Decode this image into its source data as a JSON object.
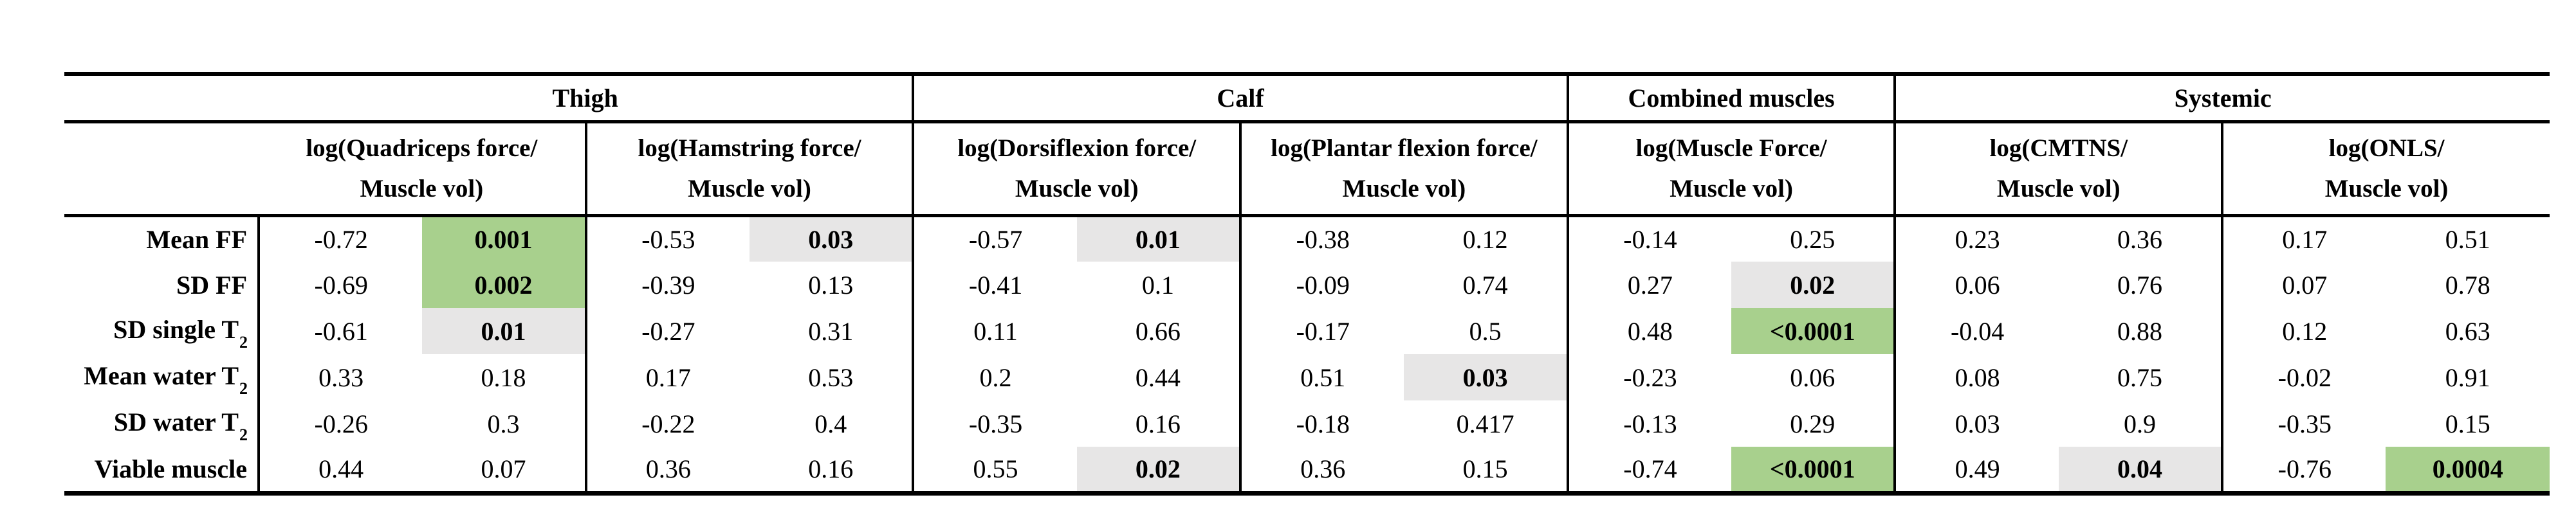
{
  "table": {
    "groups": [
      {
        "label": "Thigh"
      },
      {
        "label": "Calf"
      },
      {
        "label": "Combined muscles"
      },
      {
        "label": "Systemic"
      }
    ],
    "measures": [
      {
        "line1": "log(Quadriceps force/",
        "line2": "Muscle vol)"
      },
      {
        "line1": "log(Hamstring force/",
        "line2": "Muscle vol)"
      },
      {
        "line1": "log(Dorsiflexion force/",
        "line2": "Muscle vol)"
      },
      {
        "line1": "log(Plantar flexion force/",
        "line2": "Muscle vol)"
      },
      {
        "line1": "log(Muscle Force/",
        "line2": "Muscle vol)"
      },
      {
        "line1": "log(CMTNS/",
        "line2": "Muscle vol)"
      },
      {
        "line1": "log(ONLS/",
        "line2": "Muscle vol)"
      }
    ],
    "rows": [
      {
        "label": "Mean FF",
        "sub": "",
        "cells": [
          {
            "r": "-0.72",
            "p": "0.001",
            "hl": "green"
          },
          {
            "r": "-0.53",
            "p": "0.03",
            "hl": "gray"
          },
          {
            "r": "-0.57",
            "p": "0.01",
            "hl": "gray"
          },
          {
            "r": "-0.38",
            "p": "0.12",
            "hl": null
          },
          {
            "r": "-0.14",
            "p": "0.25",
            "hl": null
          },
          {
            "r": "0.23",
            "p": "0.36",
            "hl": null
          },
          {
            "r": "0.17",
            "p": "0.51",
            "hl": null
          }
        ]
      },
      {
        "label": "SD FF",
        "sub": "",
        "cells": [
          {
            "r": "-0.69",
            "p": "0.002",
            "hl": "green"
          },
          {
            "r": "-0.39",
            "p": "0.13",
            "hl": null
          },
          {
            "r": "-0.41",
            "p": "0.1",
            "hl": null
          },
          {
            "r": "-0.09",
            "p": "0.74",
            "hl": null
          },
          {
            "r": "0.27",
            "p": "0.02",
            "hl": "gray"
          },
          {
            "r": "0.06",
            "p": "0.76",
            "hl": null
          },
          {
            "r": "0.07",
            "p": "0.78",
            "hl": null
          }
        ]
      },
      {
        "label": "SD single T",
        "sub": "2",
        "cells": [
          {
            "r": "-0.61",
            "p": "0.01",
            "hl": "gray"
          },
          {
            "r": "-0.27",
            "p": "0.31",
            "hl": null
          },
          {
            "r": "0.11",
            "p": "0.66",
            "hl": null
          },
          {
            "r": "-0.17",
            "p": "0.5",
            "hl": null
          },
          {
            "r": "0.48",
            "p": "<0.0001",
            "hl": "green"
          },
          {
            "r": "-0.04",
            "p": "0.88",
            "hl": null
          },
          {
            "r": "0.12",
            "p": "0.63",
            "hl": null
          }
        ]
      },
      {
        "label": "Mean water T",
        "sub": "2",
        "cells": [
          {
            "r": "0.33",
            "p": "0.18",
            "hl": null
          },
          {
            "r": "0.17",
            "p": "0.53",
            "hl": null
          },
          {
            "r": "0.2",
            "p": "0.44",
            "hl": null
          },
          {
            "r": "0.51",
            "p": "0.03",
            "hl": "gray"
          },
          {
            "r": "-0.23",
            "p": "0.06",
            "hl": null
          },
          {
            "r": "0.08",
            "p": "0.75",
            "hl": null
          },
          {
            "r": "-0.02",
            "p": "0.91",
            "hl": null
          }
        ]
      },
      {
        "label": "SD water T",
        "sub": "2",
        "cells": [
          {
            "r": "-0.26",
            "p": "0.3",
            "hl": null
          },
          {
            "r": "-0.22",
            "p": "0.4",
            "hl": null
          },
          {
            "r": "-0.35",
            "p": "0.16",
            "hl": null
          },
          {
            "r": "-0.18",
            "p": "0.417",
            "hl": null
          },
          {
            "r": "-0.13",
            "p": "0.29",
            "hl": null
          },
          {
            "r": "0.03",
            "p": "0.9",
            "hl": null
          },
          {
            "r": "-0.35",
            "p": "0.15",
            "hl": null
          }
        ]
      },
      {
        "label": "Viable muscle",
        "sub": "",
        "cells": [
          {
            "r": "0.44",
            "p": "0.07",
            "hl": null
          },
          {
            "r": "0.36",
            "p": "0.16",
            "hl": null
          },
          {
            "r": "0.55",
            "p": "0.02",
            "hl": "gray"
          },
          {
            "r": "0.36",
            "p": "0.15",
            "hl": null
          },
          {
            "r": "-0.74",
            "p": "<0.0001",
            "hl": "green"
          },
          {
            "r": "0.49",
            "p": "0.04",
            "hl": "gray"
          },
          {
            "r": "-0.76",
            "p": "0.0004",
            "hl": "green"
          }
        ]
      }
    ],
    "colors": {
      "green": "#a8d08d",
      "gray": "#e7e6e6"
    }
  }
}
